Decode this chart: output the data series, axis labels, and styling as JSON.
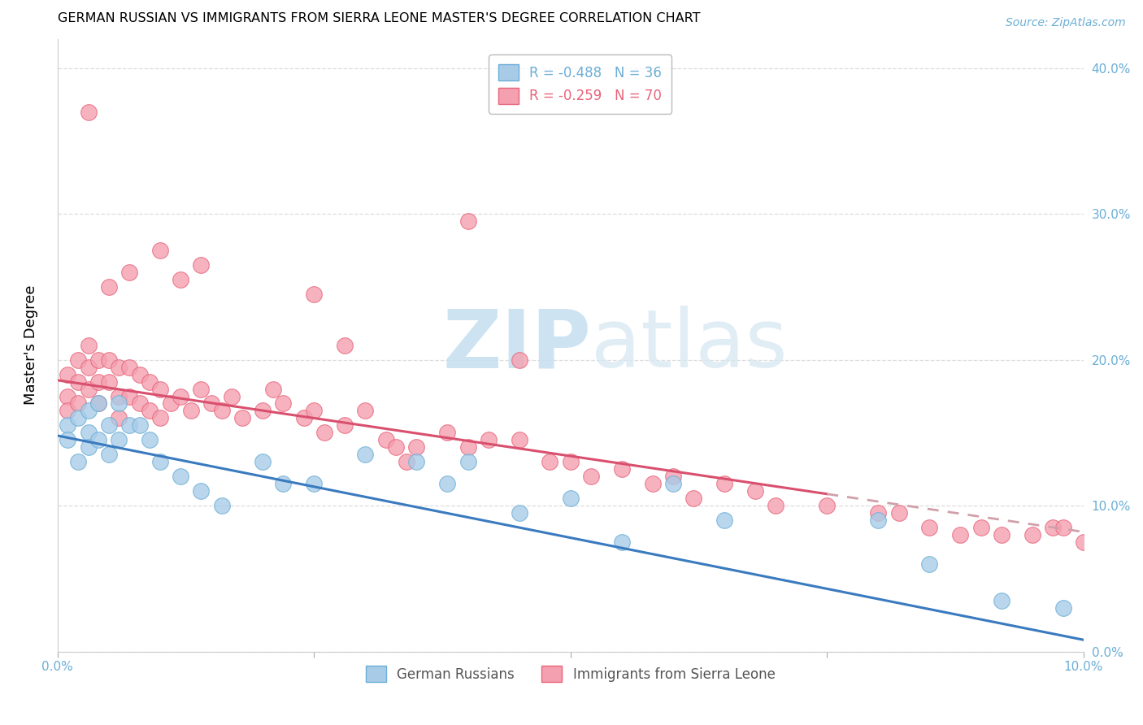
{
  "title": "GERMAN RUSSIAN VS IMMIGRANTS FROM SIERRA LEONE MASTER'S DEGREE CORRELATION CHART",
  "source": "Source: ZipAtlas.com",
  "ylabel": "Master's Degree",
  "xmin": 0.0,
  "xmax": 0.1,
  "ymin": 0.0,
  "ymax": 0.42,
  "yticks": [
    0.0,
    0.1,
    0.2,
    0.3,
    0.4
  ],
  "legend_entries": [
    {
      "label": "R = -0.488   N = 36",
      "color": "#6baed6"
    },
    {
      "label": "R = -0.259   N = 70",
      "color": "#e8647a"
    }
  ],
  "group1_label": "German Russians",
  "group2_label": "Immigrants from Sierra Leone",
  "group1_color": "#a8cce8",
  "group2_color": "#f4a0b0",
  "group1_edge_color": "#6baed6",
  "group2_edge_color": "#e8647a",
  "trendline1_color": "#3a7abf",
  "trendline2_color": "#d94f6e",
  "trendline2_dashed_color": "#d0a0aa",
  "watermark_zip": "ZIP",
  "watermark_atlas": "atlas",
  "background_color": "#ffffff",
  "grid_color": "#cccccc",
  "title_fontsize": 11.5,
  "trendline2_solid_end": 0.075,
  "group1_x": [
    0.001,
    0.001,
    0.002,
    0.002,
    0.003,
    0.003,
    0.003,
    0.004,
    0.004,
    0.005,
    0.005,
    0.006,
    0.006,
    0.007,
    0.008,
    0.009,
    0.01,
    0.012,
    0.014,
    0.016,
    0.02,
    0.022,
    0.025,
    0.03,
    0.035,
    0.038,
    0.04,
    0.045,
    0.05,
    0.055,
    0.06,
    0.065,
    0.08,
    0.085,
    0.092,
    0.098
  ],
  "group1_y": [
    0.155,
    0.145,
    0.16,
    0.13,
    0.165,
    0.15,
    0.14,
    0.17,
    0.145,
    0.155,
    0.135,
    0.17,
    0.145,
    0.155,
    0.155,
    0.145,
    0.13,
    0.12,
    0.11,
    0.1,
    0.13,
    0.115,
    0.115,
    0.135,
    0.13,
    0.115,
    0.13,
    0.095,
    0.105,
    0.075,
    0.115,
    0.09,
    0.09,
    0.06,
    0.035,
    0.03
  ],
  "group2_x": [
    0.001,
    0.001,
    0.001,
    0.002,
    0.002,
    0.002,
    0.003,
    0.003,
    0.003,
    0.004,
    0.004,
    0.004,
    0.005,
    0.005,
    0.006,
    0.006,
    0.006,
    0.007,
    0.007,
    0.008,
    0.008,
    0.009,
    0.009,
    0.01,
    0.01,
    0.011,
    0.012,
    0.013,
    0.014,
    0.015,
    0.016,
    0.017,
    0.018,
    0.02,
    0.021,
    0.022,
    0.024,
    0.025,
    0.026,
    0.028,
    0.03,
    0.032,
    0.033,
    0.034,
    0.035,
    0.038,
    0.04,
    0.042,
    0.045,
    0.048,
    0.05,
    0.052,
    0.055,
    0.058,
    0.06,
    0.062,
    0.065,
    0.068,
    0.07,
    0.075,
    0.08,
    0.082,
    0.085,
    0.088,
    0.09,
    0.092,
    0.095,
    0.097,
    0.098,
    0.1
  ],
  "group2_y": [
    0.19,
    0.175,
    0.165,
    0.2,
    0.185,
    0.17,
    0.21,
    0.195,
    0.18,
    0.2,
    0.185,
    0.17,
    0.2,
    0.185,
    0.195,
    0.175,
    0.16,
    0.195,
    0.175,
    0.19,
    0.17,
    0.185,
    0.165,
    0.18,
    0.16,
    0.17,
    0.175,
    0.165,
    0.18,
    0.17,
    0.165,
    0.175,
    0.16,
    0.165,
    0.18,
    0.17,
    0.16,
    0.165,
    0.15,
    0.155,
    0.165,
    0.145,
    0.14,
    0.13,
    0.14,
    0.15,
    0.14,
    0.145,
    0.145,
    0.13,
    0.13,
    0.12,
    0.125,
    0.115,
    0.12,
    0.105,
    0.115,
    0.11,
    0.1,
    0.1,
    0.095,
    0.095,
    0.085,
    0.08,
    0.085,
    0.08,
    0.08,
    0.085,
    0.085,
    0.075
  ],
  "sierra_leone_high_points": [
    [
      0.003,
      0.37
    ],
    [
      0.005,
      0.25
    ],
    [
      0.007,
      0.26
    ],
    [
      0.01,
      0.275
    ],
    [
      0.012,
      0.255
    ],
    [
      0.014,
      0.265
    ],
    [
      0.025,
      0.245
    ],
    [
      0.028,
      0.21
    ],
    [
      0.04,
      0.295
    ],
    [
      0.045,
      0.2
    ]
  ],
  "trendline1_x0": 0.0,
  "trendline1_y0": 0.148,
  "trendline1_x1": 0.1,
  "trendline1_y1": 0.008,
  "trendline2_x0": 0.0,
  "trendline2_y0": 0.186,
  "trendline2_x1": 0.1,
  "trendline2_y1": 0.082
}
